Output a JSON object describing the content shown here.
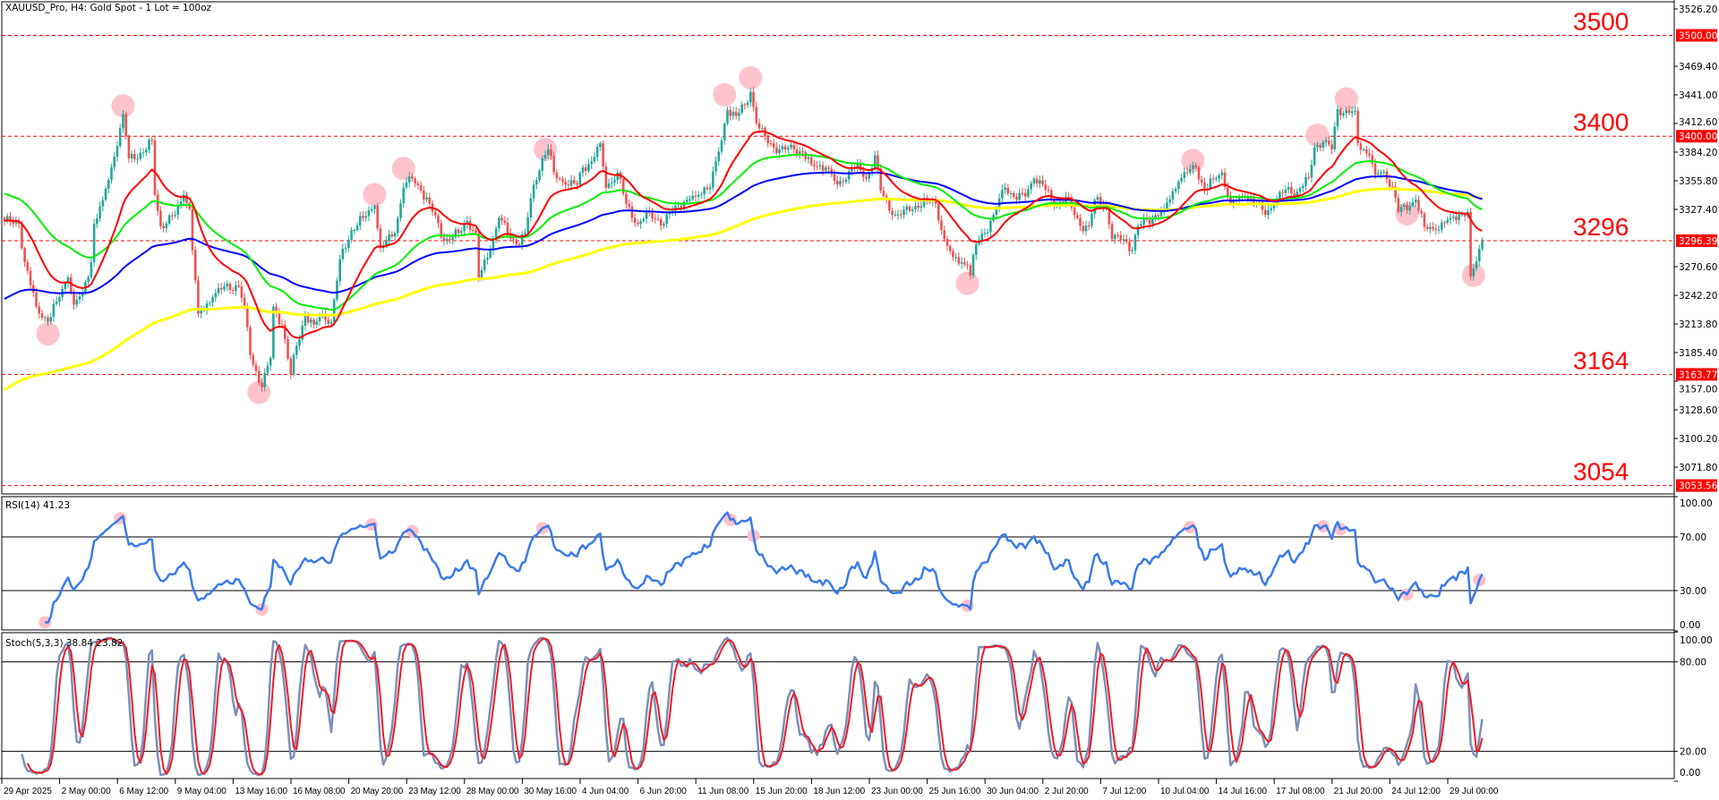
{
  "chart_data": {
    "type": "candlestick",
    "title": "XAUUSD_Pro, H4:  Gold  Spot - 1 Lot = 100oz",
    "price_axis": {
      "range": [
        3053.56,
        3526.2
      ],
      "ticks": [
        "3526.20",
        "3469.40",
        "3441.00",
        "3412.60",
        "3384.20",
        "3355.80",
        "3327.40",
        "3270.60",
        "3242.20",
        "3213.80",
        "3185.40",
        "3157.00",
        "3128.60",
        "3100.20",
        "3071.80"
      ]
    },
    "time_axis": {
      "labels": [
        "29 Apr 2025",
        "2 May 00:00",
        "6 May 12:00",
        "9 May 04:00",
        "13 May 16:00",
        "16 May 08:00",
        "20 May 20:00",
        "23 May 12:00",
        "28 May 00:00",
        "30 May 16:00",
        "4 Jun 04:00",
        "6 Jun 20:00",
        "11 Jun 08:00",
        "15 Jun 20:00",
        "18 Jun 12:00",
        "23 Jun 00:00",
        "25 Jun 16:00",
        "30 Jun 04:00",
        "2 Jul 20:00",
        "7 Jul 12:00",
        "10 Jul 04:00",
        "14 Jul 16:00",
        "17 Jul 08:00",
        "21 Jul 20:00",
        "24 Jul 12:00",
        "29 Jul 00:00"
      ],
      "bars_per_label": 20
    },
    "colors": {
      "bull": "#26a69a",
      "bear": "#ef5350",
      "ma_fast": "#ff0000",
      "ma_mid": "#00ee00",
      "ma_slow": "#0000ff",
      "ma_long": "#ffff00",
      "level": "#ff0000",
      "highlight": "#ffc0cb",
      "rsi": "#3a7bea",
      "stoch_main": "#7d8fb8",
      "stoch_signal": "#ee1c25"
    },
    "price_keypoints_bar_close": [
      [
        0,
        3316
      ],
      [
        5,
        3313
      ],
      [
        7,
        3275
      ],
      [
        11,
        3231
      ],
      [
        15,
        3216
      ],
      [
        18,
        3236
      ],
      [
        22,
        3260
      ],
      [
        24,
        3233
      ],
      [
        27,
        3245
      ],
      [
        30,
        3275
      ],
      [
        31,
        3313
      ],
      [
        34,
        3337
      ],
      [
        37,
        3369
      ],
      [
        40,
        3408
      ],
      [
        41,
        3422
      ],
      [
        43,
        3378
      ],
      [
        48,
        3384
      ],
      [
        51,
        3396
      ],
      [
        52,
        3342
      ],
      [
        54,
        3311
      ],
      [
        59,
        3322
      ],
      [
        62,
        3342
      ],
      [
        64,
        3328
      ],
      [
        65,
        3287
      ],
      [
        67,
        3224
      ],
      [
        72,
        3240
      ],
      [
        76,
        3251
      ],
      [
        81,
        3251
      ],
      [
        83,
        3231
      ],
      [
        85,
        3183
      ],
      [
        89,
        3151
      ],
      [
        92,
        3180
      ],
      [
        93,
        3231
      ],
      [
        96,
        3213
      ],
      [
        99,
        3164
      ],
      [
        101,
        3192
      ],
      [
        104,
        3222
      ],
      [
        107,
        3213
      ],
      [
        110,
        3224
      ],
      [
        113,
        3216
      ],
      [
        116,
        3278
      ],
      [
        120,
        3307
      ],
      [
        124,
        3319
      ],
      [
        128,
        3331
      ],
      [
        130,
        3289
      ],
      [
        135,
        3304
      ],
      [
        138,
        3349
      ],
      [
        141,
        3358
      ],
      [
        144,
        3346
      ],
      [
        147,
        3333
      ],
      [
        152,
        3296
      ],
      [
        157,
        3304
      ],
      [
        160,
        3316
      ],
      [
        163,
        3304
      ],
      [
        164,
        3260
      ],
      [
        168,
        3287
      ],
      [
        171,
        3319
      ],
      [
        174,
        3304
      ],
      [
        177,
        3293
      ],
      [
        180,
        3304
      ],
      [
        183,
        3352
      ],
      [
        186,
        3378
      ],
      [
        188,
        3387
      ],
      [
        190,
        3364
      ],
      [
        194,
        3352
      ],
      [
        198,
        3352
      ],
      [
        200,
        3369
      ],
      [
        203,
        3375
      ],
      [
        206,
        3393
      ],
      [
        208,
        3349
      ],
      [
        212,
        3364
      ],
      [
        215,
        3333
      ],
      [
        219,
        3313
      ],
      [
        223,
        3324
      ],
      [
        228,
        3313
      ],
      [
        232,
        3331
      ],
      [
        236,
        3337
      ],
      [
        239,
        3340
      ],
      [
        242,
        3349
      ],
      [
        244,
        3349
      ],
      [
        246,
        3375
      ],
      [
        248,
        3396
      ],
      [
        250,
        3426
      ],
      [
        253,
        3420
      ],
      [
        256,
        3431
      ],
      [
        258,
        3444
      ],
      [
        260,
        3413
      ],
      [
        264,
        3393
      ],
      [
        268,
        3387
      ],
      [
        273,
        3387
      ],
      [
        276,
        3384
      ],
      [
        279,
        3372
      ],
      [
        284,
        3369
      ],
      [
        288,
        3352
      ],
      [
        290,
        3355
      ],
      [
        293,
        3369
      ],
      [
        296,
        3366
      ],
      [
        298,
        3358
      ],
      [
        301,
        3381
      ],
      [
        303,
        3346
      ],
      [
        307,
        3322
      ],
      [
        310,
        3322
      ],
      [
        315,
        3331
      ],
      [
        319,
        3337
      ],
      [
        322,
        3333
      ],
      [
        325,
        3298
      ],
      [
        328,
        3280
      ],
      [
        333,
        3272
      ],
      [
        334,
        3262
      ],
      [
        336,
        3293
      ],
      [
        339,
        3304
      ],
      [
        342,
        3322
      ],
      [
        346,
        3349
      ],
      [
        349,
        3340
      ],
      [
        353,
        3340
      ],
      [
        356,
        3358
      ],
      [
        359,
        3352
      ],
      [
        363,
        3331
      ],
      [
        367,
        3340
      ],
      [
        372,
        3311
      ],
      [
        375,
        3311
      ],
      [
        377,
        3337
      ],
      [
        381,
        3331
      ],
      [
        383,
        3298
      ],
      [
        387,
        3298
      ],
      [
        390,
        3287
      ],
      [
        392,
        3311
      ],
      [
        397,
        3319
      ],
      [
        401,
        3328
      ],
      [
        406,
        3355
      ],
      [
        409,
        3364
      ],
      [
        412,
        3369
      ],
      [
        415,
        3346
      ],
      [
        418,
        3358
      ],
      [
        421,
        3364
      ],
      [
        424,
        3333
      ],
      [
        429,
        3340
      ],
      [
        433,
        3334
      ],
      [
        436,
        3322
      ],
      [
        439,
        3334
      ],
      [
        443,
        3347
      ],
      [
        447,
        3345
      ],
      [
        451,
        3359
      ],
      [
        453,
        3389
      ],
      [
        456,
        3394
      ],
      [
        459,
        3387
      ],
      [
        461,
        3427
      ],
      [
        465,
        3423
      ],
      [
        467,
        3425
      ],
      [
        468,
        3393
      ],
      [
        472,
        3381
      ],
      [
        474,
        3362
      ],
      [
        477,
        3365
      ],
      [
        480,
        3350
      ],
      [
        482,
        3325
      ],
      [
        486,
        3331
      ],
      [
        488,
        3337
      ],
      [
        491,
        3310
      ],
      [
        495,
        3307
      ],
      [
        500,
        3319
      ],
      [
        503,
        3322
      ],
      [
        506,
        3325
      ],
      [
        507,
        3261
      ],
      [
        509,
        3276
      ],
      [
        511,
        3296.39
      ]
    ],
    "levels": [
      {
        "price": 3500.0,
        "tag": "3500.00",
        "label": "3500"
      },
      {
        "price": 3400.0,
        "tag": "3400.00",
        "label": "3400"
      },
      {
        "price": 3296.39,
        "tag": "3296.39",
        "label": "3296"
      },
      {
        "price": 3163.77,
        "tag": "3163.77",
        "label": "3164"
      },
      {
        "price": 3053.56,
        "tag": "3053.56",
        "label": "3054"
      }
    ],
    "price_highlights_bar_price": [
      [
        15,
        3204
      ],
      [
        41,
        3430
      ],
      [
        88,
        3146
      ],
      [
        128,
        3342
      ],
      [
        138,
        3368
      ],
      [
        187,
        3387
      ],
      [
        249,
        3441
      ],
      [
        258,
        3458
      ],
      [
        333,
        3254
      ],
      [
        411,
        3376
      ],
      [
        454,
        3401
      ],
      [
        464,
        3437
      ],
      [
        485,
        3323
      ],
      [
        508,
        3262
      ]
    ],
    "rsi": {
      "label": "RSI(14) 41.23",
      "levels": [
        70,
        30
      ],
      "ticks": [
        "100.00",
        "70.00",
        "30.00",
        "0.00"
      ],
      "highlight_bars": [
        14,
        40,
        89,
        127,
        141,
        186,
        251,
        259,
        333,
        410,
        456,
        462,
        485,
        510
      ]
    },
    "stoch": {
      "label": "Stoch(5,3,3) 38.84 23.82",
      "levels": [
        80,
        20
      ],
      "ticks": [
        "100.00",
        "80.00",
        "20.00",
        "0.00"
      ]
    }
  }
}
